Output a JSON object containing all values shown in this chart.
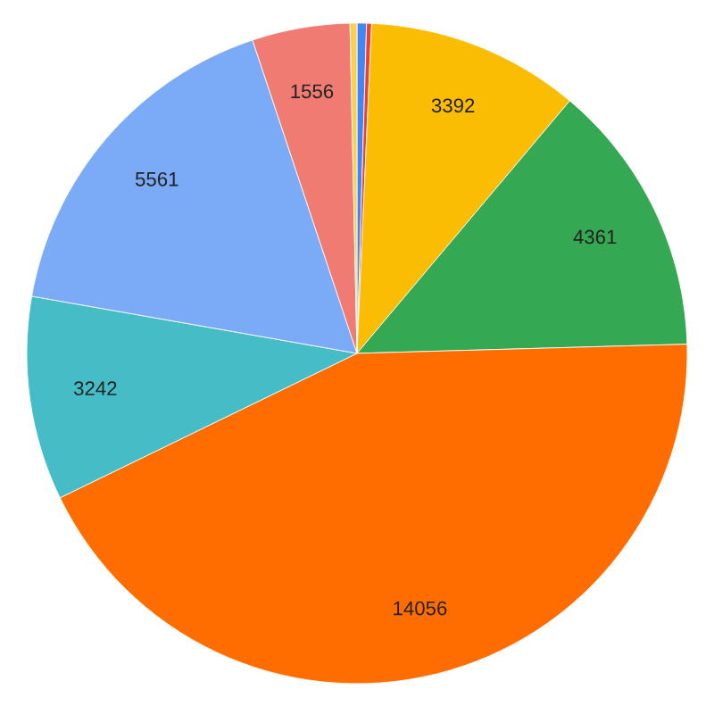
{
  "chart_data": {
    "type": "pie",
    "categories": [
      null,
      null,
      null,
      null,
      null,
      null,
      null,
      null,
      null
    ],
    "values": [
      150,
      80,
      3392,
      4361,
      14056,
      3242,
      5561,
      1556,
      110
    ],
    "value_labels": [
      null,
      null,
      "3392",
      "4361",
      "14056",
      "3242",
      "5561",
      "1556",
      null
    ],
    "colors": [
      "#4285f4",
      "#ea4335",
      "#fbbc04",
      "#34a853",
      "#ff6d01",
      "#46bdc6",
      "#7baaf7",
      "#f07b72",
      "#fcd04f"
    ]
  }
}
